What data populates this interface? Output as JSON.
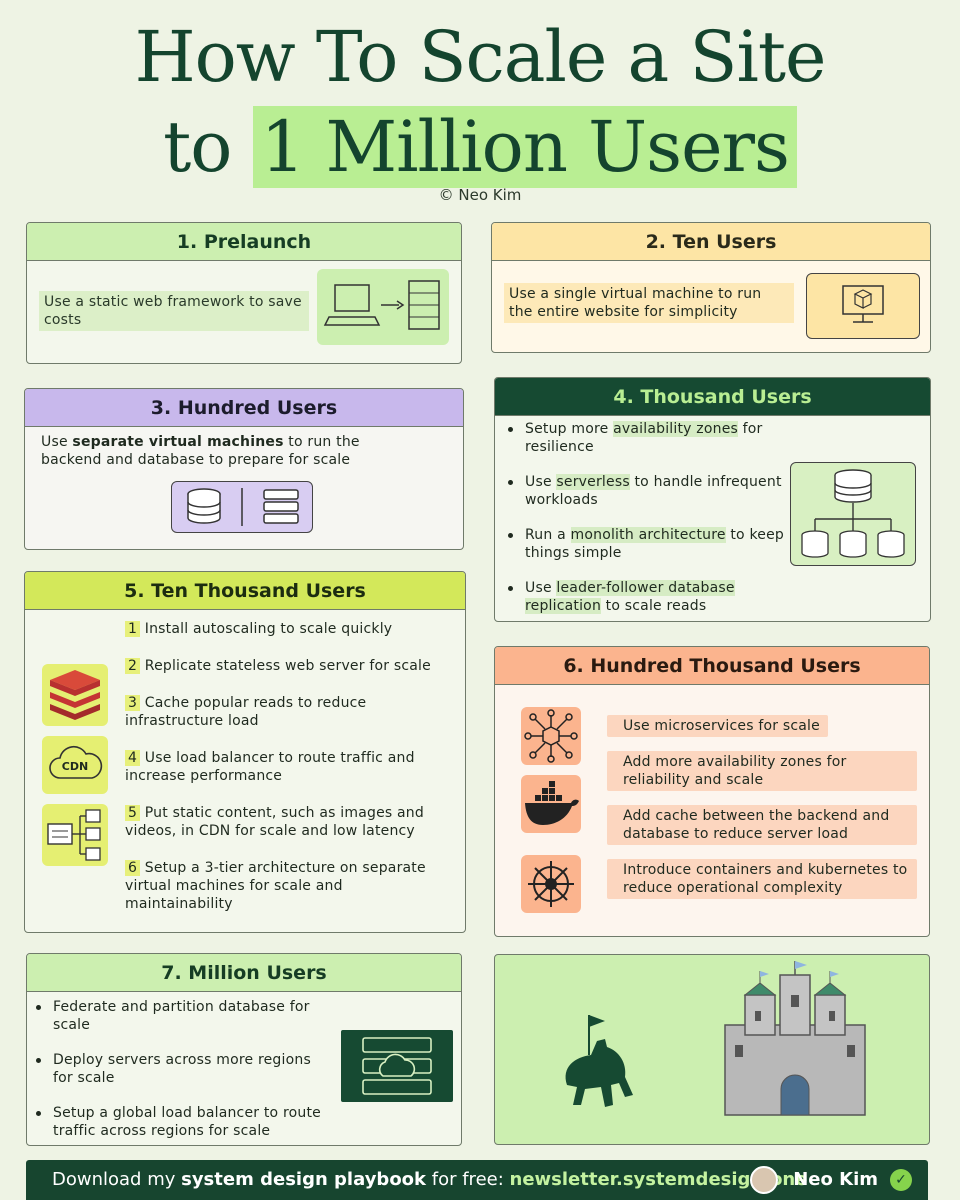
{
  "header": {
    "title_line1": "How To Scale a Site",
    "title_line2_pre": "to ",
    "title_line2_hl": "1 Million Users",
    "copyright": "© Neo Kim"
  },
  "sections": {
    "prelaunch": {
      "title": "1. Prelaunch",
      "text": "Use a static web framework to save costs"
    },
    "ten": {
      "title": "2. Ten Users",
      "text": "Use a single virtual machine to run the entire website for simplicity"
    },
    "hundred": {
      "title": "3. Hundred Users",
      "text_pre": "Use ",
      "text_bold": "separate virtual machines",
      "text_post": " to run the backend and database to prepare for scale"
    },
    "thousand": {
      "title": "4. Thousand Users",
      "items": [
        {
          "pre": "Setup more ",
          "hl": "availability zones",
          "post": " for resilience"
        },
        {
          "pre": "Use ",
          "hl": "serverless",
          "post": " to handle infrequent workloads"
        },
        {
          "pre": "Run a ",
          "hl": "monolith architecture",
          "post": " to keep things simple"
        },
        {
          "pre": "Use ",
          "hl": "leader-follower database replication",
          "post": " to scale reads"
        }
      ]
    },
    "ten_thousand": {
      "title": "5. Ten Thousand Users",
      "cdn_label": "CDN",
      "items": [
        {
          "n": "1",
          "text": "Install autoscaling to scale quickly"
        },
        {
          "n": "2",
          "text": "Replicate stateless web server for scale"
        },
        {
          "n": "3",
          "text": "Cache popular reads to reduce infrastructure load"
        },
        {
          "n": "4",
          "text": "Use load balancer to route traffic and increase performance"
        },
        {
          "n": "5",
          "text": "Put static content, such as images and videos, in CDN for scale and low latency"
        },
        {
          "n": "6",
          "text": "Setup a 3-tier architecture on separate virtual machines for scale and maintainability"
        }
      ]
    },
    "hundred_thousand": {
      "title": "6. Hundred Thousand Users",
      "items": [
        "Use microservices for scale",
        "Add more availability zones for reliability and scale",
        "Add cache between the backend and database to reduce server load",
        "Introduce containers and kubernetes to reduce operational complexity"
      ]
    },
    "million": {
      "title": "7. Million Users",
      "items": [
        "Federate and partition database for scale",
        "Deploy servers across more regions for scale",
        "Setup a global load balancer to route traffic across regions  for scale"
      ]
    }
  },
  "footer": {
    "pre": "Download my ",
    "bold": "system design playbook",
    "mid": " for free: ",
    "link": "newsletter.systemdesign.one",
    "author": "Neo Kim",
    "check": "✓"
  },
  "colors": {
    "dark_green": "#164a32",
    "light_green": "#ccefb0",
    "yellow": "#fde5a5",
    "purple": "#c8b8ec",
    "lime": "#d3e85a",
    "orange": "#fbb48e"
  }
}
